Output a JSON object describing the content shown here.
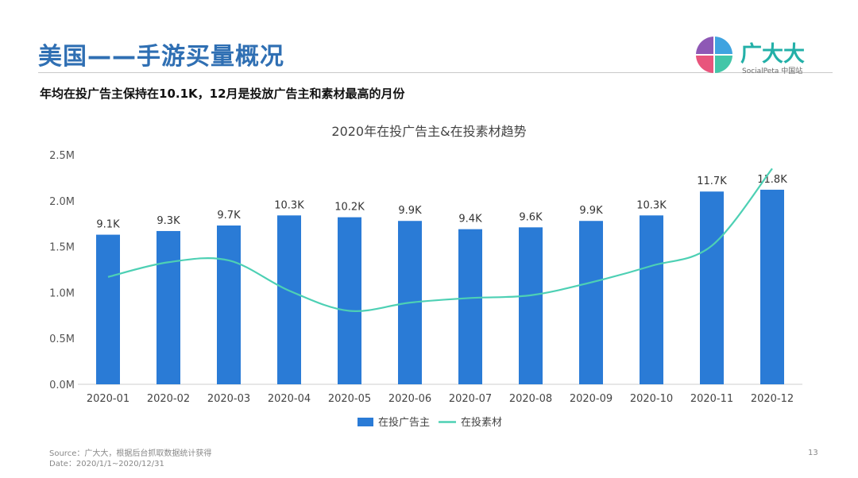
{
  "page": {
    "title": "美国——手游买量概况",
    "subtitle": "年均在投广告主保持在10.1K，12月是投放广告主和素材最高的月份",
    "logo_text": "广大大",
    "logo_sub": "SocialPeta 中国站",
    "footer_source": "Source：广大大，根据后台抓取数据统计获得",
    "footer_date": "Date：2020/1/1~2020/12/31",
    "page_number": "13"
  },
  "colors": {
    "title": "#2f6fb3",
    "bar": "#2a7bd6",
    "line": "#4dd0b4",
    "logo_text": "#23b0a8"
  },
  "chart_data": {
    "type": "bar",
    "title": "2020年在投广告主&在投素材趋势",
    "categories": [
      "2020-01",
      "2020-02",
      "2020-03",
      "2020-04",
      "2020-05",
      "2020-06",
      "2020-07",
      "2020-08",
      "2020-09",
      "2020-10",
      "2020-11",
      "2020-12"
    ],
    "series": [
      {
        "name": "在投广告主",
        "type": "bar",
        "values": [
          1.63,
          1.67,
          1.73,
          1.84,
          1.82,
          1.78,
          1.69,
          1.71,
          1.78,
          1.84,
          2.1,
          2.12
        ],
        "data_labels": [
          "9.1K",
          "9.3K",
          "9.7K",
          "10.3K",
          "10.2K",
          "9.9K",
          "9.4K",
          "9.6K",
          "9.9K",
          "10.3K",
          "11.7K",
          "11.8K"
        ]
      },
      {
        "name": "在投素材",
        "type": "line",
        "smooth": true,
        "values": [
          1.17,
          1.33,
          1.35,
          1.02,
          0.8,
          0.89,
          0.94,
          0.97,
          1.11,
          1.29,
          1.51,
          2.35
        ]
      }
    ],
    "y_ticks": [
      "0.0M",
      "0.5M",
      "1.0M",
      "1.5M",
      "2.0M",
      "2.5M"
    ],
    "ylim": [
      0,
      2.5
    ],
    "grid": false,
    "legend_position": "bottom"
  }
}
